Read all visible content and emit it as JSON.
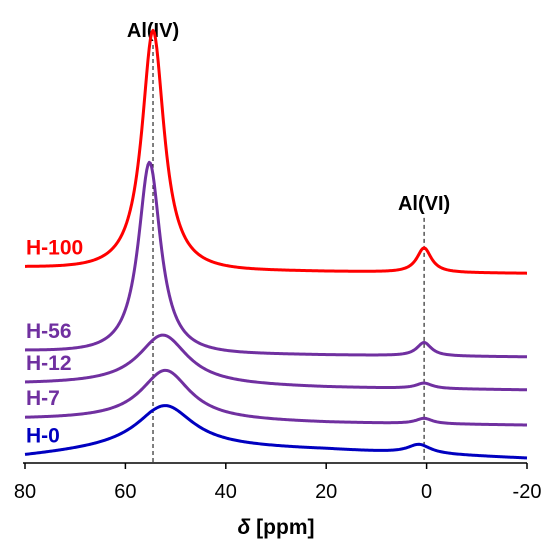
{
  "chart_data": {
    "type": "line",
    "subtype": "stacked-spectra",
    "xlabel_symbol": "δ",
    "xlabel_unit": "[ppm]",
    "xlim": [
      80,
      -20
    ],
    "x_reversed": true,
    "grid": false,
    "legend": "inline-left",
    "x_ticks": [
      80,
      60,
      40,
      20,
      0,
      -20
    ],
    "annotations": [
      {
        "label": "Al(IV)",
        "x": 54.5,
        "line_style": "dashed"
      },
      {
        "label": "Al(VI)",
        "x": 0.5,
        "line_style": "dashed"
      }
    ],
    "series": [
      {
        "name": "H-100",
        "color": "#ff0000",
        "offset": 4.2,
        "baseline": [
          0.15,
          0.12,
          0.05,
          0.0
        ],
        "peaks": [
          {
            "center": 54.5,
            "height": 5.4,
            "width": 3.4
          },
          {
            "center": 0.5,
            "height": 0.55,
            "width": 2.2
          }
        ]
      },
      {
        "name": "H-56",
        "color": "#7030a0",
        "offset": 2.3,
        "baseline": [
          0.15,
          0.12,
          0.05,
          0.0
        ],
        "peaks": [
          {
            "center": 55.2,
            "height": 4.3,
            "width": 3.4
          },
          {
            "center": 0.5,
            "height": 0.3,
            "width": 2.2
          }
        ]
      },
      {
        "name": "H-12",
        "color": "#7030a0",
        "offset": 1.55,
        "baseline": [
          0.15,
          0.15,
          0.06,
          0.0
        ],
        "peaks": [
          {
            "center": 52.5,
            "height": 1.1,
            "width": 7.5
          },
          {
            "center": 0.5,
            "height": 0.12,
            "width": 2.5
          }
        ]
      },
      {
        "name": "H-7",
        "color": "#7030a0",
        "offset": 0.75,
        "baseline": [
          0.15,
          0.15,
          0.06,
          0.0
        ],
        "peaks": [
          {
            "center": 52.0,
            "height": 1.1,
            "width": 7.5
          },
          {
            "center": 0.5,
            "height": 0.12,
            "width": 2.5
          }
        ]
      },
      {
        "name": "H-0",
        "color": "#0000c0",
        "offset": 0.0,
        "baseline": [
          0.05,
          0.3,
          0.2,
          0.0
        ],
        "peaks": [
          {
            "center": 52.0,
            "height": 0.9,
            "width": 8.5
          },
          {
            "center": 1.5,
            "height": 0.2,
            "width": 3.5
          }
        ]
      }
    ]
  }
}
